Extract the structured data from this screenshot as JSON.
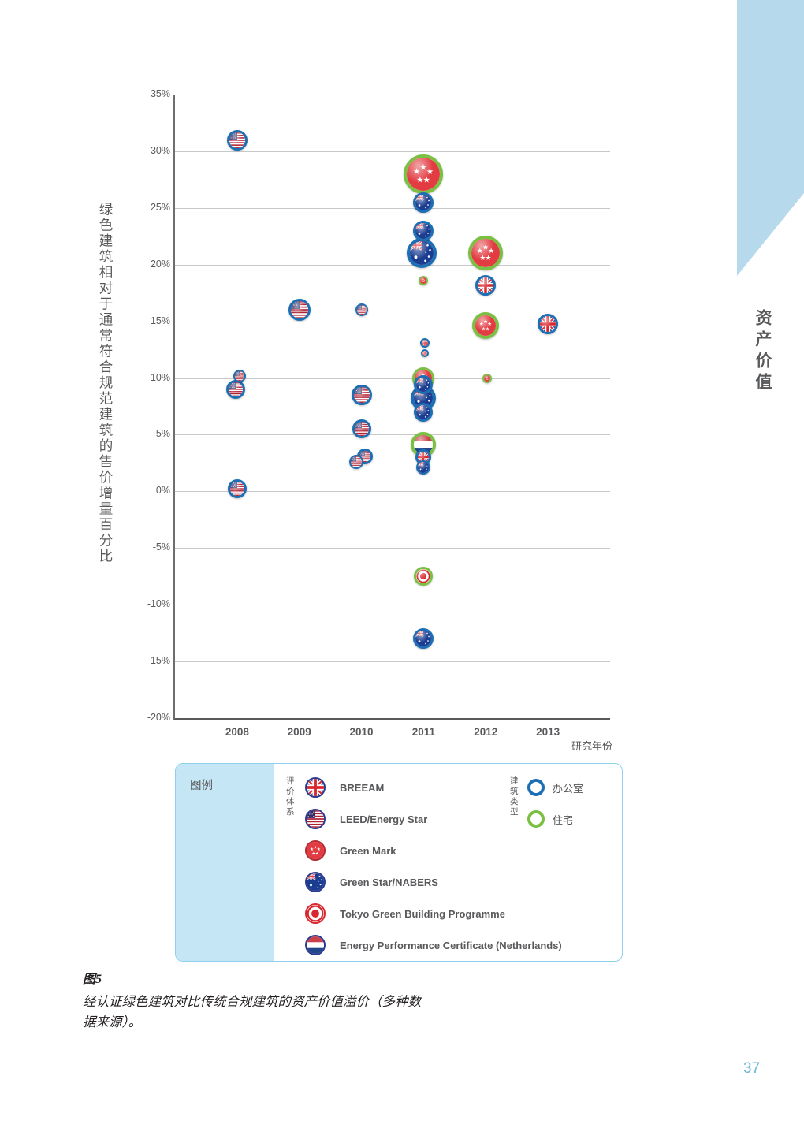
{
  "page": {
    "side_label": "资产价值",
    "page_number": "37",
    "caption_title": "图5",
    "caption_line1": "经认证绿色建筑对比传统合规建筑的资产价值溢价（多种数",
    "caption_line2": "据来源）。"
  },
  "chart_data": {
    "type": "scatter",
    "title": "",
    "ylabel": "绿色建筑相对于通常符合规范建筑的售价增量百分比",
    "xlabel": "研究年份",
    "x_categories": [
      "2008",
      "2009",
      "2010",
      "2011",
      "2012",
      "2013"
    ],
    "ylim": [
      -20,
      35
    ],
    "yticks": [
      35,
      30,
      25,
      20,
      15,
      10,
      5,
      0,
      -5,
      -10,
      -15,
      -20
    ],
    "grid": true,
    "colors": {
      "office_ring": "#1c6fb5",
      "residential_ring": "#7ac143",
      "grid": "#c8c9cb",
      "axis": "#58595b"
    },
    "points": [
      {
        "year": "2008",
        "value": 31,
        "system": "leed",
        "building_type": "office",
        "size": 13,
        "dx": 0
      },
      {
        "year": "2008",
        "value": 10.2,
        "system": "leed",
        "building_type": "office",
        "size": 8,
        "dx": 3
      },
      {
        "year": "2008",
        "value": 9,
        "system": "leed",
        "building_type": "office",
        "size": 12,
        "dx": -2
      },
      {
        "year": "2008",
        "value": 0.2,
        "system": "leed",
        "building_type": "office",
        "size": 12,
        "dx": 0
      },
      {
        "year": "2009",
        "value": 16,
        "system": "leed",
        "building_type": "office",
        "size": 14,
        "dx": 0
      },
      {
        "year": "2010",
        "value": 16,
        "system": "leed",
        "building_type": "office",
        "size": 8,
        "dx": 0
      },
      {
        "year": "2010",
        "value": 8.5,
        "system": "leed",
        "building_type": "office",
        "size": 13,
        "dx": 0
      },
      {
        "year": "2010",
        "value": 5.5,
        "system": "leed",
        "building_type": "office",
        "size": 12,
        "dx": 0
      },
      {
        "year": "2010",
        "value": 3.1,
        "system": "leed",
        "building_type": "office",
        "size": 10,
        "dx": 4
      },
      {
        "year": "2010",
        "value": 2.6,
        "system": "leed",
        "building_type": "office",
        "size": 9,
        "dx": -7
      },
      {
        "year": "2011",
        "value": 28,
        "system": "greenmark",
        "building_type": "residential",
        "size": 25,
        "dx": 0
      },
      {
        "year": "2011",
        "value": 25.5,
        "system": "greenstar",
        "building_type": "office",
        "size": 13,
        "dx": 0
      },
      {
        "year": "2011",
        "value": 23,
        "system": "greenstar",
        "building_type": "office",
        "size": 13,
        "dx": 0
      },
      {
        "year": "2011",
        "value": 21,
        "system": "greenstar",
        "building_type": "office",
        "size": 19,
        "dx": -2
      },
      {
        "year": "2011",
        "value": 18.6,
        "system": "greenmark",
        "building_type": "residential",
        "size": 6,
        "dx": 0
      },
      {
        "year": "2011",
        "value": 13.1,
        "system": "breeam",
        "building_type": "office",
        "size": 6,
        "dx": 2
      },
      {
        "year": "2011",
        "value": 12.2,
        "system": "breeam",
        "building_type": "office",
        "size": 5,
        "dx": 2
      },
      {
        "year": "2011",
        "value": 10,
        "system": "greenmark",
        "building_type": "residential",
        "size": 14,
        "dx": 0
      },
      {
        "year": "2011",
        "value": 9.4,
        "system": "greenstar",
        "building_type": "office",
        "size": 12,
        "dx": 0
      },
      {
        "year": "2011",
        "value": 8.2,
        "system": "greenstar",
        "building_type": "office",
        "size": 16,
        "dx": 0
      },
      {
        "year": "2011",
        "value": 7,
        "system": "greenstar",
        "building_type": "office",
        "size": 12,
        "dx": 0
      },
      {
        "year": "2011",
        "value": 4.1,
        "system": "epc",
        "building_type": "residential",
        "size": 16,
        "dx": 0
      },
      {
        "year": "2011",
        "value": 3,
        "system": "breeam",
        "building_type": "office",
        "size": 10,
        "dx": 0
      },
      {
        "year": "2011",
        "value": 2.1,
        "system": "greenstar",
        "building_type": "office",
        "size": 9,
        "dx": 0
      },
      {
        "year": "2011",
        "value": -7.5,
        "system": "tokyo",
        "building_type": "residential",
        "size": 12,
        "dx": 0
      },
      {
        "year": "2011",
        "value": -13,
        "system": "greenstar",
        "building_type": "office",
        "size": 13,
        "dx": 0
      },
      {
        "year": "2012",
        "value": 21,
        "system": "greenmark",
        "building_type": "residential",
        "size": 22,
        "dx": 0
      },
      {
        "year": "2012",
        "value": 18.2,
        "system": "breeam",
        "building_type": "office",
        "size": 13,
        "dx": 0
      },
      {
        "year": "2012",
        "value": 14.6,
        "system": "greenmark",
        "building_type": "residential",
        "size": 17,
        "dx": 0
      },
      {
        "year": "2012",
        "value": 10,
        "system": "greenmark",
        "building_type": "residential",
        "size": 6,
        "dx": 2
      },
      {
        "year": "2013",
        "value": 14.8,
        "system": "breeam",
        "building_type": "office",
        "size": 13,
        "dx": 0
      }
    ]
  },
  "legend": {
    "box_label": "图例",
    "rating_group_label": "评价体系",
    "building_group_label": "建筑类型",
    "rating_systems": [
      {
        "key": "breeam",
        "label": "BREEAM"
      },
      {
        "key": "leed",
        "label": "LEED/Energy Star"
      },
      {
        "key": "greenmark",
        "label": "Green Mark"
      },
      {
        "key": "greenstar",
        "label": "Green Star/NABERS"
      },
      {
        "key": "tokyo",
        "label": "Tokyo Green Building Programme"
      },
      {
        "key": "epc",
        "label": "Energy Performance Certificate (Netherlands)"
      }
    ],
    "building_types": [
      {
        "key": "office",
        "label": "办公室",
        "ring": "#1c6fb5"
      },
      {
        "key": "residential",
        "label": "住宅",
        "ring": "#7ac143"
      }
    ]
  }
}
